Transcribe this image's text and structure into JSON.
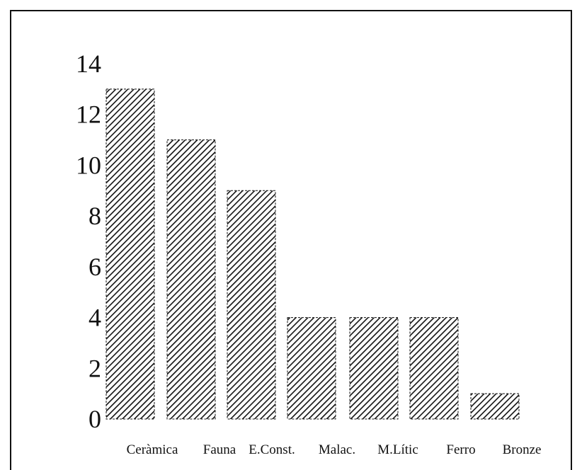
{
  "chart_data": {
    "type": "bar",
    "title": "",
    "xlabel": "",
    "ylabel": "",
    "categories": [
      "Ceràmica",
      "Fauna",
      "E.Const.",
      "Malac.",
      "M.Lític",
      "Ferro",
      "Bronze"
    ],
    "values": [
      13,
      11,
      9,
      4,
      4,
      4,
      1
    ],
    "ylim": [
      0,
      14
    ],
    "yticks": [
      0,
      2,
      4,
      6,
      8,
      10,
      12,
      14
    ],
    "grid": false,
    "legend": "none",
    "bar_fill": "diagonal hatch",
    "colors": {
      "bar": "#111111",
      "background": "#ffffff"
    }
  }
}
